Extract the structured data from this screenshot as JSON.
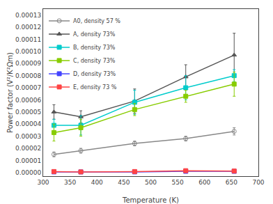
{
  "chart_data": {
    "type": "line",
    "x_label": "Temperature (K)",
    "y_label": "Power factor (V²/K²Ωm)",
    "x": [
      320,
      370,
      470,
      565,
      655
    ],
    "xlim": [
      300,
      700
    ],
    "xticks": [
      300,
      350,
      400,
      450,
      500,
      550,
      600,
      650,
      700
    ],
    "ylim": [
      -3e-06,
      0.000135
    ],
    "yticks": [
      {
        "value": 0.0,
        "label": "0.00000"
      },
      {
        "value": 1e-05,
        "label": "0.00001"
      },
      {
        "value": 2e-05,
        "label": "0.00002"
      },
      {
        "value": 3e-05,
        "label": "0.00003"
      },
      {
        "value": 4e-05,
        "label": "0.00004"
      },
      {
        "value": 5e-05,
        "label": "0.00005"
      },
      {
        "value": 6e-05,
        "label": "0.00006"
      },
      {
        "value": 7e-05,
        "label": "0.00007"
      },
      {
        "value": 8e-05,
        "label": "0.00008"
      },
      {
        "value": 9e-05,
        "label": "0.00009"
      },
      {
        "value": 0.0001,
        "label": "0.00010"
      },
      {
        "value": 0.00011,
        "label": "0.00011"
      },
      {
        "value": 0.00012,
        "label": "0.00012"
      },
      {
        "value": 0.00013,
        "label": "0.00013"
      }
    ],
    "grid": false,
    "legend": "upper left",
    "series": [
      {
        "name": "A0, density 57 %",
        "color": "#888888",
        "marker": "circle-open",
        "line_style": "solid",
        "values": [
          1.5e-05,
          1.8e-05,
          2.4e-05,
          2.8e-05,
          3.4e-05
        ],
        "yerr": [
          2e-06,
          2e-06,
          2e-06,
          2e-06,
          3e-06
        ]
      },
      {
        "name": "A, density 73%",
        "color": "#555555",
        "marker": "triangle-up",
        "line_style": "solid",
        "values": [
          5e-05,
          4.6e-05,
          5.9e-05,
          7.9e-05,
          9.7e-05
        ],
        "yerr": [
          6e-06,
          5e-06,
          1e-05,
          1e-05,
          1.8e-05
        ]
      },
      {
        "name": "B, density 73%",
        "color": "#00cccc",
        "marker": "square",
        "line_style": "solid",
        "values": [
          3.9e-05,
          3.9e-05,
          5.8e-05,
          7e-05,
          8e-05
        ],
        "yerr": [
          5e-06,
          8e-06,
          1e-05,
          1e-05,
          5e-06
        ]
      },
      {
        "name": "C, density 73%",
        "color": "#88cc00",
        "marker": "square",
        "line_style": "solid",
        "values": [
          3.3e-05,
          3.7e-05,
          5.2e-05,
          6.3e-05,
          7.3e-05
        ],
        "yerr": [
          7e-06,
          7e-06,
          5e-06,
          5e-06,
          1e-05
        ]
      },
      {
        "name": "D, density 73%",
        "color": "#4444ff",
        "marker": "square",
        "line_style": "solid",
        "values": [
          5e-07,
          5e-07,
          5e-07,
          1e-06,
          1e-06
        ],
        "yerr": [
          2e-07,
          2e-07,
          2e-07,
          2e-07,
          2e-07
        ]
      },
      {
        "name": "E, density 73 %",
        "color": "#ff4444",
        "marker": "square",
        "line_style": "solid",
        "values": [
          8e-07,
          5e-07,
          8e-07,
          1.5e-06,
          1.2e-06
        ],
        "yerr": [
          2e-07,
          2e-07,
          2e-07,
          2e-07,
          2e-07
        ]
      }
    ]
  }
}
